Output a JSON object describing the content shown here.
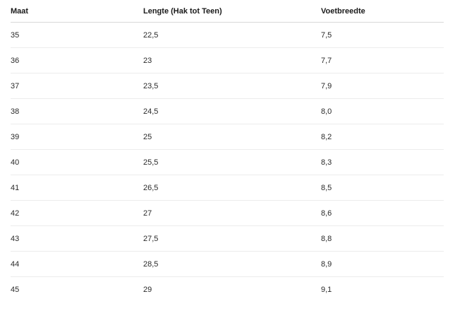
{
  "table": {
    "headers": [
      "Maat",
      "Lengte (Hak tot Teen)",
      "Voetbreedte"
    ],
    "rows": [
      [
        "35",
        "22,5",
        "7,5"
      ],
      [
        "36",
        "23",
        "7,7"
      ],
      [
        "37",
        "23,5",
        "7,9"
      ],
      [
        "38",
        "24,5",
        "8,0"
      ],
      [
        "39",
        "25",
        "8,2"
      ],
      [
        "40",
        "25,5",
        "8,3"
      ],
      [
        "41",
        "26,5",
        "8,5"
      ],
      [
        "42",
        "27",
        "8,6"
      ],
      [
        "43",
        "27,5",
        "8,8"
      ],
      [
        "44",
        "28,5",
        "8,9"
      ],
      [
        "45",
        "29",
        "9,1"
      ]
    ]
  }
}
